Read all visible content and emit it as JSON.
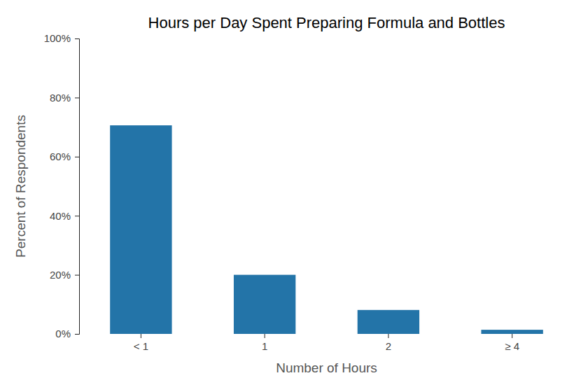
{
  "chart_data": {
    "type": "bar",
    "title": "Hours per Day Spent Preparing Formula and Bottles",
    "xlabel": "Number of Hours",
    "ylabel": "Percent of Respondents",
    "categories": [
      "< 1",
      "1",
      "2",
      "≥ 4"
    ],
    "values": [
      70.6,
      20.0,
      8.1,
      1.4
    ],
    "color": "#2374a8",
    "ylim": [
      0,
      100
    ],
    "yticks": [
      {
        "value": 0,
        "label": "0%"
      },
      {
        "value": 20,
        "label": "20%"
      },
      {
        "value": 40,
        "label": "40%"
      },
      {
        "value": 60,
        "label": "60%"
      },
      {
        "value": 80,
        "label": "80%"
      },
      {
        "value": 100,
        "label": "100%"
      }
    ],
    "grid": false
  }
}
